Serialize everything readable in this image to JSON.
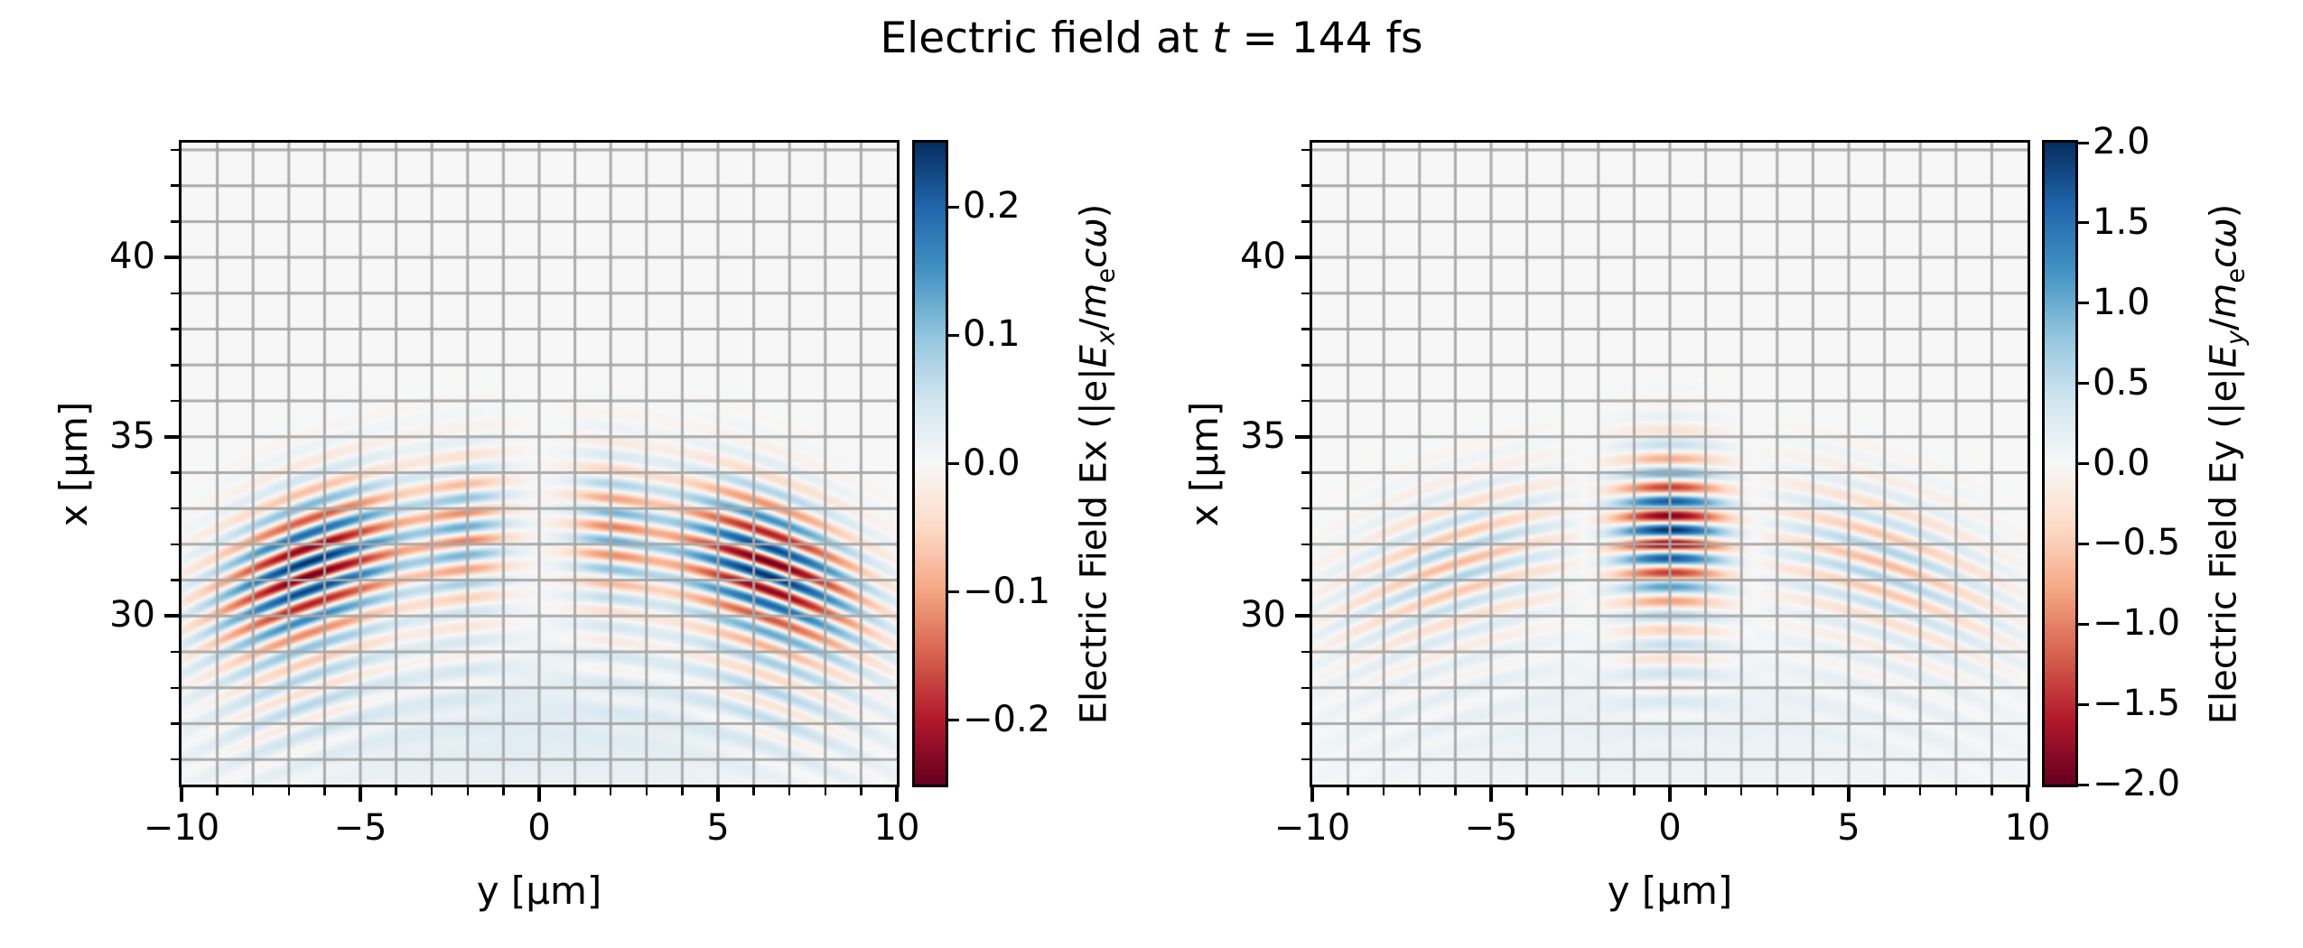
{
  "title": {
    "plain": "Electric field at t = 144 fs",
    "segments": [
      {
        "text": "Electric field at "
      },
      {
        "text": "t",
        "italic": true
      },
      {
        "text": " = 144 fs"
      }
    ]
  },
  "colormap": {
    "name": "RdBu",
    "anchors": [
      "#67001f",
      "#b2182b",
      "#d6604d",
      "#f4a582",
      "#fddbc7",
      "#f7f7f7",
      "#d1e5f0",
      "#92c5de",
      "#4393c3",
      "#2166ac",
      "#053061"
    ]
  },
  "grid": {
    "color_rgba": "rgba(166,166,166,0.95)",
    "step_um": 1
  },
  "chart_data": [
    {
      "type": "heatmap",
      "panel": "left",
      "field_name": "Ex",
      "time_fs": 144,
      "xlabel": "y [μm]",
      "ylabel": "x [μm]",
      "xlim": [
        -10,
        10
      ],
      "ylim": [
        25.3,
        43.2
      ],
      "x_major_ticks": [
        {
          "value": -10,
          "label": "−10"
        },
        {
          "value": -5,
          "label": "−5"
        },
        {
          "value": 0,
          "label": "0"
        },
        {
          "value": 5,
          "label": "5"
        },
        {
          "value": 10,
          "label": "10"
        }
      ],
      "y_major_ticks": [
        {
          "value": 40,
          "label": "40"
        },
        {
          "value": 35,
          "label": "35"
        },
        {
          "value": 30,
          "label": "30"
        }
      ],
      "minor_tick_step": 1,
      "colorbar": {
        "vmin": -0.25,
        "vmax": 0.25,
        "label_plain": "Electric Field Ex (|e|Ex/mecω)",
        "label_segments": [
          {
            "text": "Electric Field Ex (|e|"
          },
          {
            "text": "E",
            "italic": true
          },
          {
            "text": "x",
            "italic": true,
            "sub": true
          },
          {
            "text": "/"
          },
          {
            "text": "m",
            "italic": true
          },
          {
            "text": "e",
            "sub": true
          },
          {
            "text": "cω",
            "italic": true
          },
          {
            "text": ")"
          }
        ],
        "ticks": [
          {
            "value": 0.2,
            "label": "0.2"
          },
          {
            "value": 0.1,
            "label": "0.1"
          },
          {
            "value": 0.0,
            "label": "0.0"
          },
          {
            "value": -0.1,
            "label": "−0.1"
          },
          {
            "value": -0.2,
            "label": "−0.2"
          }
        ]
      },
      "wave_model": {
        "wavelength_um": 0.8,
        "pulse_center_um": 32.4,
        "pulse_sigma_um": 2.0,
        "wavefront_radius_um": 19,
        "amplitude": 0.25,
        "transverse_profile": "antisymmetric",
        "lobes": [
          {
            "amp": 0.45,
            "center": 2.0,
            "sigma": 1.2
          },
          {
            "amp": 1.0,
            "center": 6.4,
            "sigma": 2.6
          }
        ],
        "phase_offset_rad": 1.5707963,
        "tail": {
          "amp": 0.18,
          "offset_um": -3.7,
          "sigma_um": 1.6
        },
        "wash": {
          "amp": 0.12,
          "center_x_um": 26.9,
          "sigma_x_um": 2.2,
          "sigma_y_um": 10
        }
      }
    },
    {
      "type": "heatmap",
      "panel": "right",
      "field_name": "Ey",
      "time_fs": 144,
      "xlabel": "y [μm]",
      "ylabel": "x [μm]",
      "xlim": [
        -10,
        10
      ],
      "ylim": [
        25.3,
        43.2
      ],
      "x_major_ticks": [
        {
          "value": -10,
          "label": "−10"
        },
        {
          "value": -5,
          "label": "−5"
        },
        {
          "value": 0,
          "label": "0"
        },
        {
          "value": 5,
          "label": "5"
        },
        {
          "value": 10,
          "label": "10"
        }
      ],
      "y_major_ticks": [
        {
          "value": 40,
          "label": "40"
        },
        {
          "value": 35,
          "label": "35"
        },
        {
          "value": 30,
          "label": "30"
        }
      ],
      "minor_tick_step": 1,
      "colorbar": {
        "vmin": -2.0,
        "vmax": 2.0,
        "label_plain": "Electric Field Ey (|e|Ey/mecω)",
        "label_segments": [
          {
            "text": "Electric Field Ey (|e|"
          },
          {
            "text": "E",
            "italic": true
          },
          {
            "text": "y",
            "italic": true,
            "sub": true
          },
          {
            "text": "/"
          },
          {
            "text": "m",
            "italic": true
          },
          {
            "text": "e",
            "sub": true
          },
          {
            "text": "cω",
            "italic": true
          },
          {
            "text": ")"
          }
        ],
        "ticks": [
          {
            "value": 2.0,
            "label": "2.0"
          },
          {
            "value": 1.5,
            "label": "1.5"
          },
          {
            "value": 1.0,
            "label": "1.0"
          },
          {
            "value": 0.5,
            "label": "0.5"
          },
          {
            "value": 0.0,
            "label": "0.0"
          },
          {
            "value": -0.5,
            "label": "−0.5"
          },
          {
            "value": -1.0,
            "label": "−1.0"
          },
          {
            "value": -1.5,
            "label": "−1.5"
          },
          {
            "value": -2.0,
            "label": "−2.0"
          }
        ]
      },
      "wave_model": {
        "wavelength_um": 0.8,
        "pulse_center_um": 32.4,
        "pulse_sigma_um": 2.0,
        "wavefront_radius_um": 19,
        "amplitude": 2.0,
        "transverse_profile": "symmetric",
        "lobes": [
          {
            "amp": 1.0,
            "center": 0.0,
            "sigma": 1.55
          },
          {
            "amp": -0.32,
            "center": 6.0,
            "sigma": 3.2
          }
        ],
        "phase_offset_rad": 0,
        "tail": {
          "amp": 0.15,
          "offset_um": -3.7,
          "sigma_um": 1.6
        },
        "wash": {
          "amp": 0.07,
          "center_x_um": 26.9,
          "sigma_x_um": 2.2,
          "sigma_y_um": 10
        }
      }
    }
  ]
}
